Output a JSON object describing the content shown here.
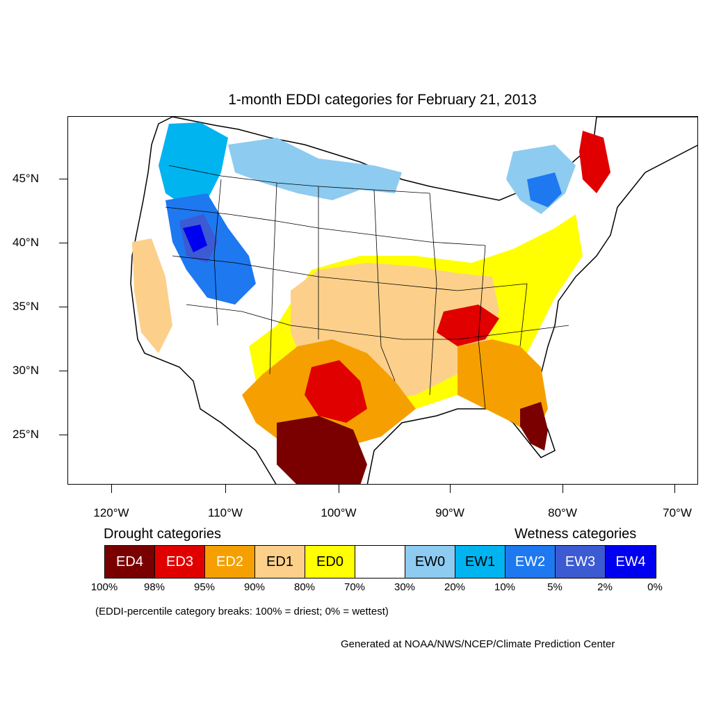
{
  "title": "1-month EDDI categories for February 21, 2013",
  "lat_labels": [
    "45°N",
    "40°N",
    "35°N",
    "30°N",
    "25°N"
  ],
  "lon_labels": [
    "120°W",
    "110°W",
    "100°W",
    "90°W",
    "80°W",
    "70°W"
  ],
  "drought_heading": "Drought categories",
  "wetness_heading": "Wetness categories",
  "legend": [
    {
      "label": "ED4",
      "color": "#7a0000",
      "text_color": "#ffffff"
    },
    {
      "label": "ED3",
      "color": "#e00000",
      "text_color": "#ffffff"
    },
    {
      "label": "ED2",
      "color": "#f5a000",
      "text_color": "#ffffff"
    },
    {
      "label": "ED1",
      "color": "#fcd08a",
      "text_color": "#000000"
    },
    {
      "label": "ED0",
      "color": "#ffff00",
      "text_color": "#000000"
    },
    {
      "label": "",
      "color": "#ffffff",
      "text_color": "#000000"
    },
    {
      "label": "EW0",
      "color": "#8ecbf0",
      "text_color": "#000000"
    },
    {
      "label": "EW1",
      "color": "#00b4f0",
      "text_color": "#000000"
    },
    {
      "label": "EW2",
      "color": "#1e78f0",
      "text_color": "#ffffff"
    },
    {
      "label": "EW3",
      "color": "#3c5ad2",
      "text_color": "#ffffff"
    },
    {
      "label": "EW4",
      "color": "#0000f0",
      "text_color": "#ffffff"
    }
  ],
  "percent_breaks": [
    "100%",
    "98%",
    "95%",
    "90%",
    "80%",
    "70%",
    "30%",
    "20%",
    "10%",
    "5%",
    "2%",
    "0%"
  ],
  "note": "(EDDI-percentile category breaks: 100% = driest; 0% = wettest)",
  "credit": "Generated at NOAA/NWS/NCEP/Climate Prediction Center"
}
